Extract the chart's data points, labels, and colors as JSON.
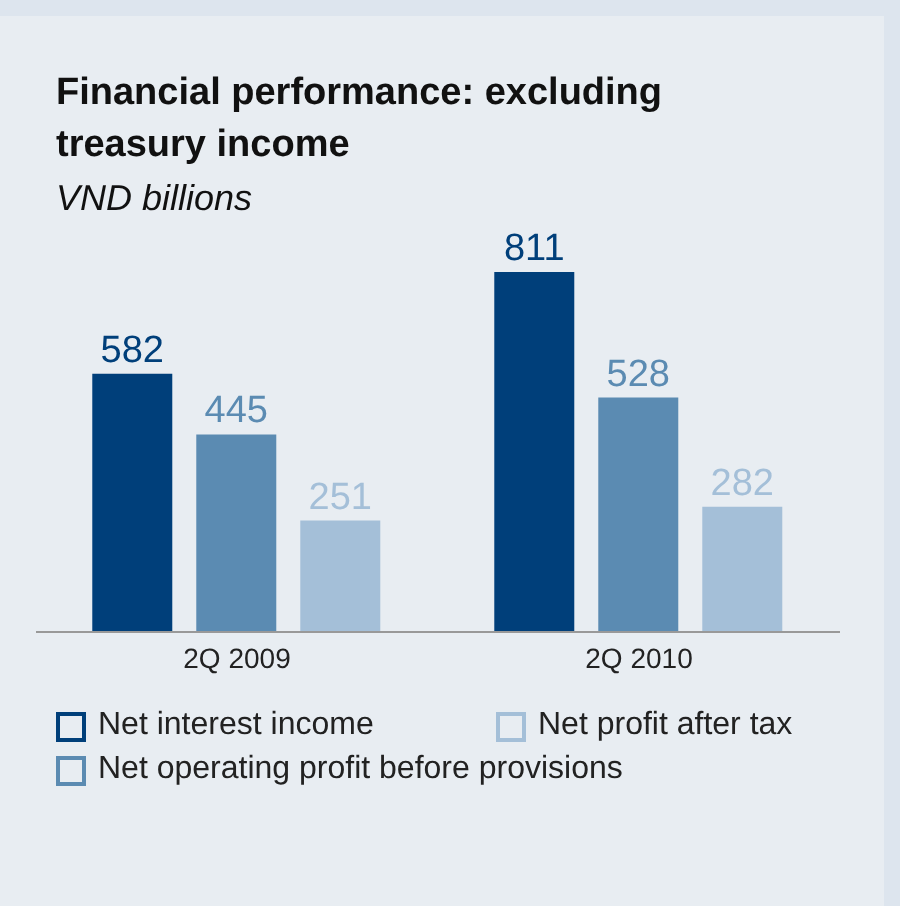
{
  "chart_data": {
    "type": "bar",
    "title": "Financial performance: excluding treasury income",
    "subtitle": "VND billions",
    "categories": [
      "2Q 2009",
      "2Q 2010"
    ],
    "series": [
      {
        "name": "Net interest income",
        "color": "#003f7a",
        "values": [
          582,
          811
        ]
      },
      {
        "name": "Net operating profit before provisions",
        "color": "#5b8bb2",
        "values": [
          445,
          528
        ]
      },
      {
        "name": "Net profit after tax",
        "color": "#a4bfd8",
        "values": [
          251,
          282
        ]
      }
    ],
    "data_labels": true,
    "legend": "bottom",
    "grid": false
  }
}
